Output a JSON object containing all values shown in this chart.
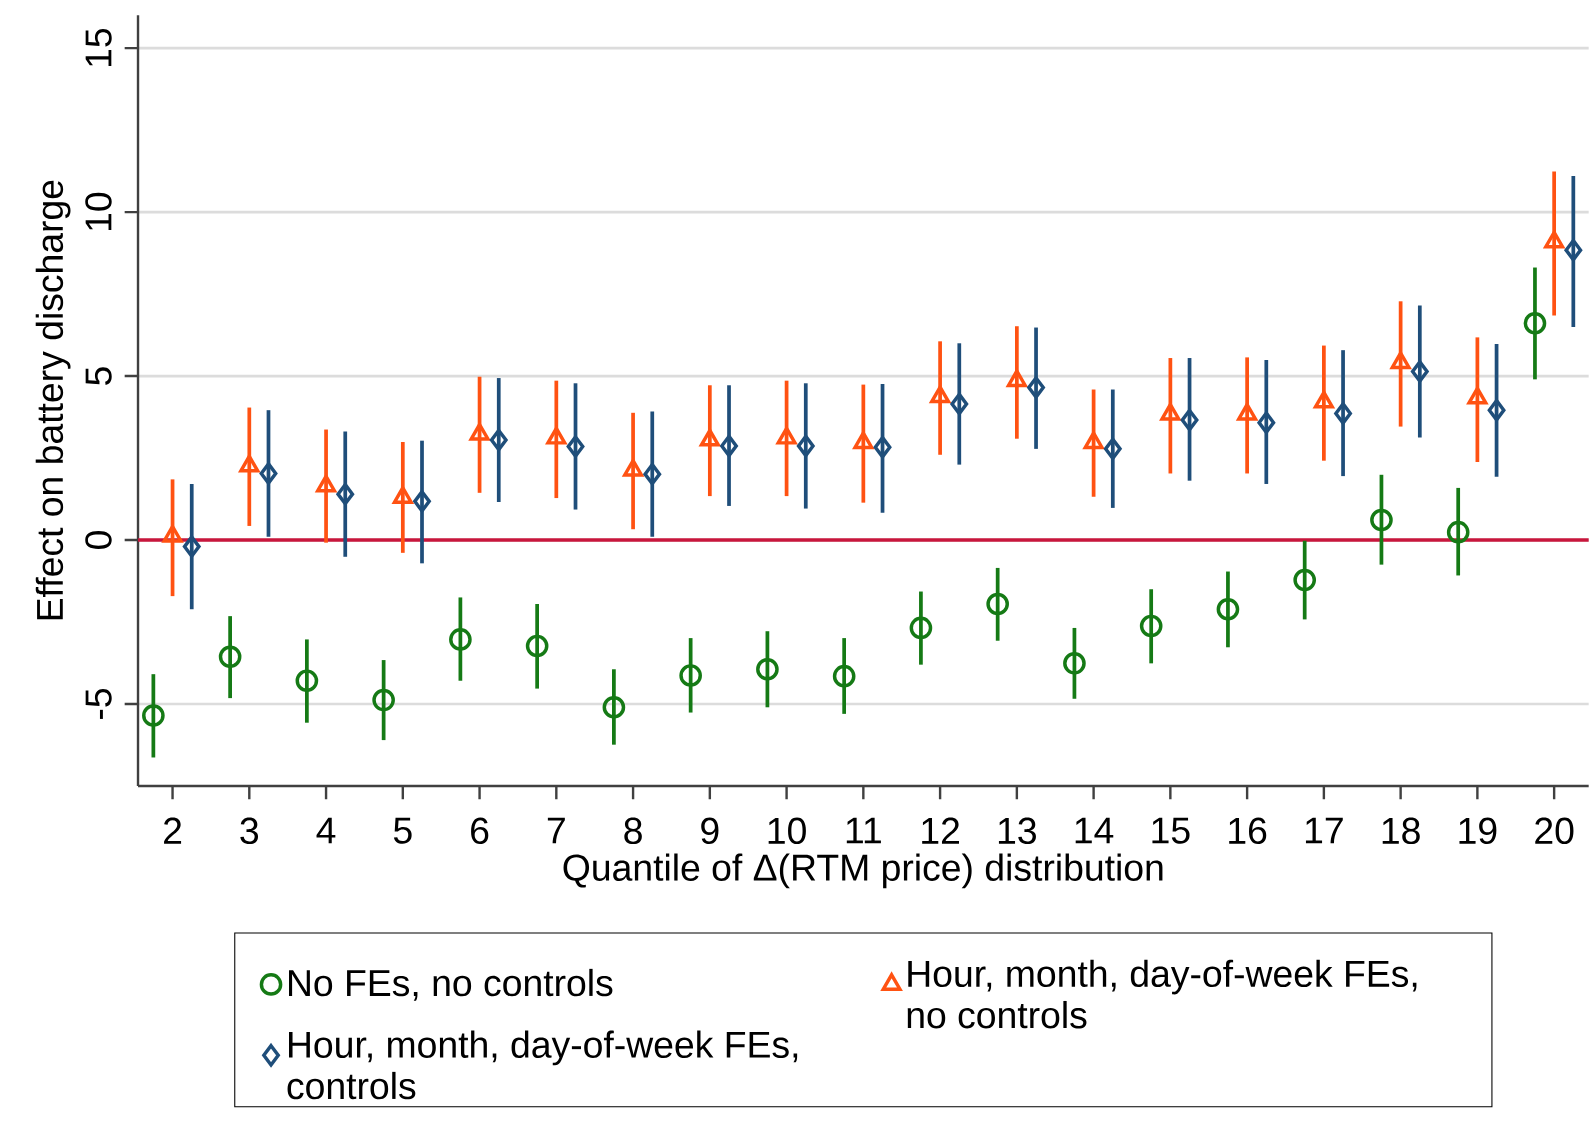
{
  "chart_data": {
    "type": "scatter",
    "categories": [
      "2",
      "3",
      "4",
      "5",
      "6",
      "7",
      "8",
      "9",
      "10",
      "11",
      "12",
      "13",
      "14",
      "15",
      "16",
      "17",
      "18",
      "19",
      "20"
    ],
    "xlabel": "Quantile of Δ(RTM price) distribution",
    "ylabel": "Effect on battery discharge",
    "ylim": [
      -7.5,
      16
    ],
    "yticks": [
      -5,
      0,
      5,
      10,
      15
    ],
    "grid": "y",
    "legend": "bottom",
    "ref_lines": [
      {
        "axis": "y",
        "value": 0,
        "color": "#c8163c"
      }
    ],
    "series": [
      {
        "name": "No FEs, no controls",
        "color": "#157a15",
        "marker": "circle",
        "values": [
          -5.35,
          -3.56,
          -4.29,
          -4.88,
          -3.03,
          -3.23,
          -5.1,
          -4.13,
          -3.94,
          -4.15,
          -2.68,
          -1.95,
          -3.76,
          -2.62,
          -2.11,
          -1.22,
          0.61,
          0.24,
          6.61
        ],
        "errors": [
          [
            -6.63,
            -4.09
          ],
          [
            -4.82,
            -2.32
          ],
          [
            -5.57,
            -3.03
          ],
          [
            -6.1,
            -3.66
          ],
          [
            -4.29,
            -1.75
          ],
          [
            -4.53,
            -1.95
          ],
          [
            -6.24,
            -3.94
          ],
          [
            -5.26,
            -2.99
          ],
          [
            -5.1,
            -2.78
          ],
          [
            -5.3,
            -2.99
          ],
          [
            -3.8,
            -1.57
          ],
          [
            -3.07,
            -0.85
          ],
          [
            -4.84,
            -2.68
          ],
          [
            -3.76,
            -1.5
          ],
          [
            -3.27,
            -0.96
          ],
          [
            -2.42,
            -0.02
          ],
          [
            -0.75,
            1.99
          ],
          [
            -1.08,
            1.59
          ],
          [
            4.9,
            8.31
          ]
        ]
      },
      {
        "name": "Hour, month, day-of-week FEs, no controls",
        "color": "#ff5212",
        "marker": "triangle",
        "values": [
          0.12,
          2.26,
          1.65,
          1.3,
          3.23,
          3.11,
          2.13,
          3.05,
          3.11,
          2.97,
          4.37,
          4.86,
          2.97,
          3.84,
          3.84,
          4.21,
          5.41,
          4.33,
          9.09
        ],
        "errors": [
          [
            -1.71,
            1.85
          ],
          [
            0.43,
            4.04
          ],
          [
            -0.08,
            3.37
          ],
          [
            -0.39,
            2.99
          ],
          [
            1.44,
            4.98
          ],
          [
            1.28,
            4.86
          ],
          [
            0.33,
            3.88
          ],
          [
            1.34,
            4.72
          ],
          [
            1.34,
            4.86
          ],
          [
            1.14,
            4.74
          ],
          [
            2.6,
            6.06
          ],
          [
            3.09,
            6.52
          ],
          [
            1.32,
            4.59
          ],
          [
            2.03,
            5.55
          ],
          [
            2.03,
            5.57
          ],
          [
            2.42,
            5.93
          ],
          [
            3.46,
            7.28
          ],
          [
            2.38,
            6.18
          ],
          [
            6.85,
            11.24
          ]
        ]
      },
      {
        "name": "Hour, month, day-of-week FEs, controls",
        "color": "#1f4e7a",
        "marker": "diamond",
        "values": [
          -0.2,
          2.03,
          1.4,
          1.18,
          3.05,
          2.85,
          2.01,
          2.87,
          2.87,
          2.83,
          4.15,
          4.65,
          2.78,
          3.66,
          3.58,
          3.86,
          5.14,
          3.96,
          8.84
        ],
        "errors": [
          [
            -2.11,
            1.71
          ],
          [
            0.1,
            3.96
          ],
          [
            -0.51,
            3.31
          ],
          [
            -0.71,
            3.03
          ],
          [
            1.16,
            4.94
          ],
          [
            0.93,
            4.78
          ],
          [
            0.1,
            3.92
          ],
          [
            1.04,
            4.72
          ],
          [
            0.96,
            4.78
          ],
          [
            0.83,
            4.76
          ],
          [
            2.3,
            6.0
          ],
          [
            2.78,
            6.48
          ],
          [
            0.98,
            4.59
          ],
          [
            1.81,
            5.55
          ],
          [
            1.71,
            5.49
          ],
          [
            1.95,
            5.79
          ],
          [
            3.13,
            7.15
          ],
          [
            1.93,
            5.98
          ],
          [
            6.5,
            11.1
          ]
        ]
      }
    ]
  }
}
